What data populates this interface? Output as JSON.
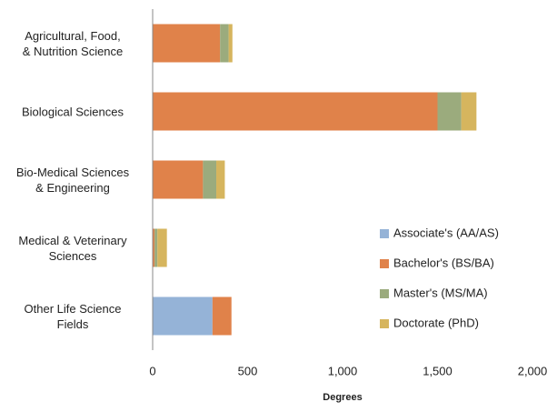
{
  "chart_data": {
    "type": "bar",
    "orientation": "horizontal",
    "stacked": true,
    "categories": [
      "Agricultural, Food,\n& Nutrition Science",
      "Biological Sciences",
      "Bio-Medical Sciences\n& Engineering",
      "Medical & Veterinary\nSciences",
      "Other Life Science\nFields"
    ],
    "series": [
      {
        "name": "Associate's (AA/AS)",
        "color": "#95b3d7",
        "values": [
          0,
          0,
          0,
          0,
          315
        ]
      },
      {
        "name": "Bachelor's (BS/BA)",
        "color": "#e0824a",
        "values": [
          355,
          1500,
          265,
          10,
          100
        ]
      },
      {
        "name": "Master's (MS/MA)",
        "color": "#9bab7d",
        "values": [
          45,
          125,
          70,
          15,
          0
        ]
      },
      {
        "name": "Doctorate (PhD)",
        "color": "#d6b55e",
        "values": [
          20,
          80,
          45,
          50,
          0
        ]
      }
    ],
    "xlabel": "Degrees",
    "xlim": [
      0,
      2000
    ],
    "xticks": [
      0,
      500,
      {
        "value": 1000,
        "label": "1,000"
      },
      {
        "value": 1500,
        "label": "1,500"
      },
      {
        "value": 2000,
        "label": "2,000"
      }
    ],
    "legend": "lower right",
    "grid": false
  }
}
